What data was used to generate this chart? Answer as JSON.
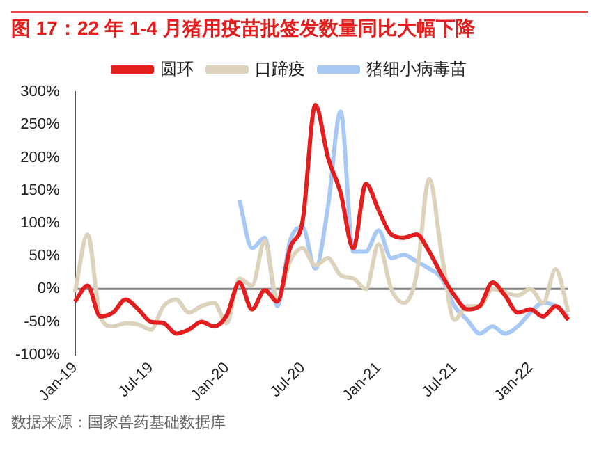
{
  "chart_data": {
    "type": "line",
    "title": "图 17：22 年 1-4 月猪用疫苗批签发数量同比大幅下降",
    "categories": [
      "Jan-19",
      null,
      null,
      null,
      null,
      null,
      "Jul-19",
      null,
      null,
      null,
      null,
      null,
      "Jan-20",
      null,
      null,
      null,
      null,
      null,
      "Jul-20",
      null,
      null,
      null,
      null,
      null,
      "Jan-21",
      null,
      null,
      null,
      null,
      null,
      "Jul-21",
      null,
      null,
      null,
      null,
      null,
      "Jan-22",
      null,
      null,
      null
    ],
    "series": [
      {
        "name": "圆环",
        "color": "#e31e1e",
        "values": [
          -19,
          5,
          -42,
          -36,
          -16,
          -31,
          -50,
          -52,
          -68,
          -62,
          -50,
          -57,
          -40,
          10,
          -31,
          -2,
          -19,
          62,
          104,
          280,
          200,
          146,
          62,
          160,
          120,
          83,
          78,
          83,
          57,
          21,
          -10,
          -31,
          -26,
          10,
          -10,
          -36,
          -31,
          -42,
          -26,
          -47
        ]
      },
      {
        "name": "口蹄疫",
        "color": "#ddd3bd",
        "values": [
          -5,
          83,
          -42,
          -57,
          -52,
          -54,
          -62,
          -26,
          -16,
          -36,
          -26,
          -21,
          -52,
          16,
          5,
          73,
          -16,
          42,
          62,
          36,
          47,
          21,
          16,
          0,
          68,
          0,
          -21,
          21,
          167,
          52,
          -47,
          -26,
          -26,
          0,
          -5,
          -10,
          0,
          -21,
          30,
          -35
        ]
      },
      {
        "name": "猪细小病毒苗",
        "color": "#a9c9f5",
        "values": [
          null,
          null,
          null,
          null,
          null,
          null,
          null,
          null,
          null,
          null,
          null,
          null,
          null,
          135,
          62,
          78,
          -26,
          73,
          94,
          31,
          125,
          270,
          57,
          57,
          89,
          47,
          52,
          42,
          31,
          16,
          -26,
          -47,
          -68,
          -57,
          -68,
          -57,
          -36,
          -21,
          -26,
          -42
        ]
      }
    ],
    "ylim": [
      -100,
      300
    ],
    "yticks": [
      {
        "value": -100,
        "label": "-100%"
      },
      {
        "value": -50,
        "label": "-50%"
      },
      {
        "value": 0,
        "label": "0%"
      },
      {
        "value": 50,
        "label": "50%"
      },
      {
        "value": 100,
        "label": "100%"
      },
      {
        "value": 150,
        "label": "150%"
      },
      {
        "value": 200,
        "label": "200%"
      },
      {
        "value": 250,
        "label": "250%"
      },
      {
        "value": 300,
        "label": "300%"
      }
    ],
    "ref_lines": [
      {
        "axis": "y",
        "value": 0,
        "color": "#808080"
      }
    ],
    "grid": false,
    "legend": "top",
    "annotations": [
      "数据来源：国家兽药基础数据库"
    ]
  }
}
